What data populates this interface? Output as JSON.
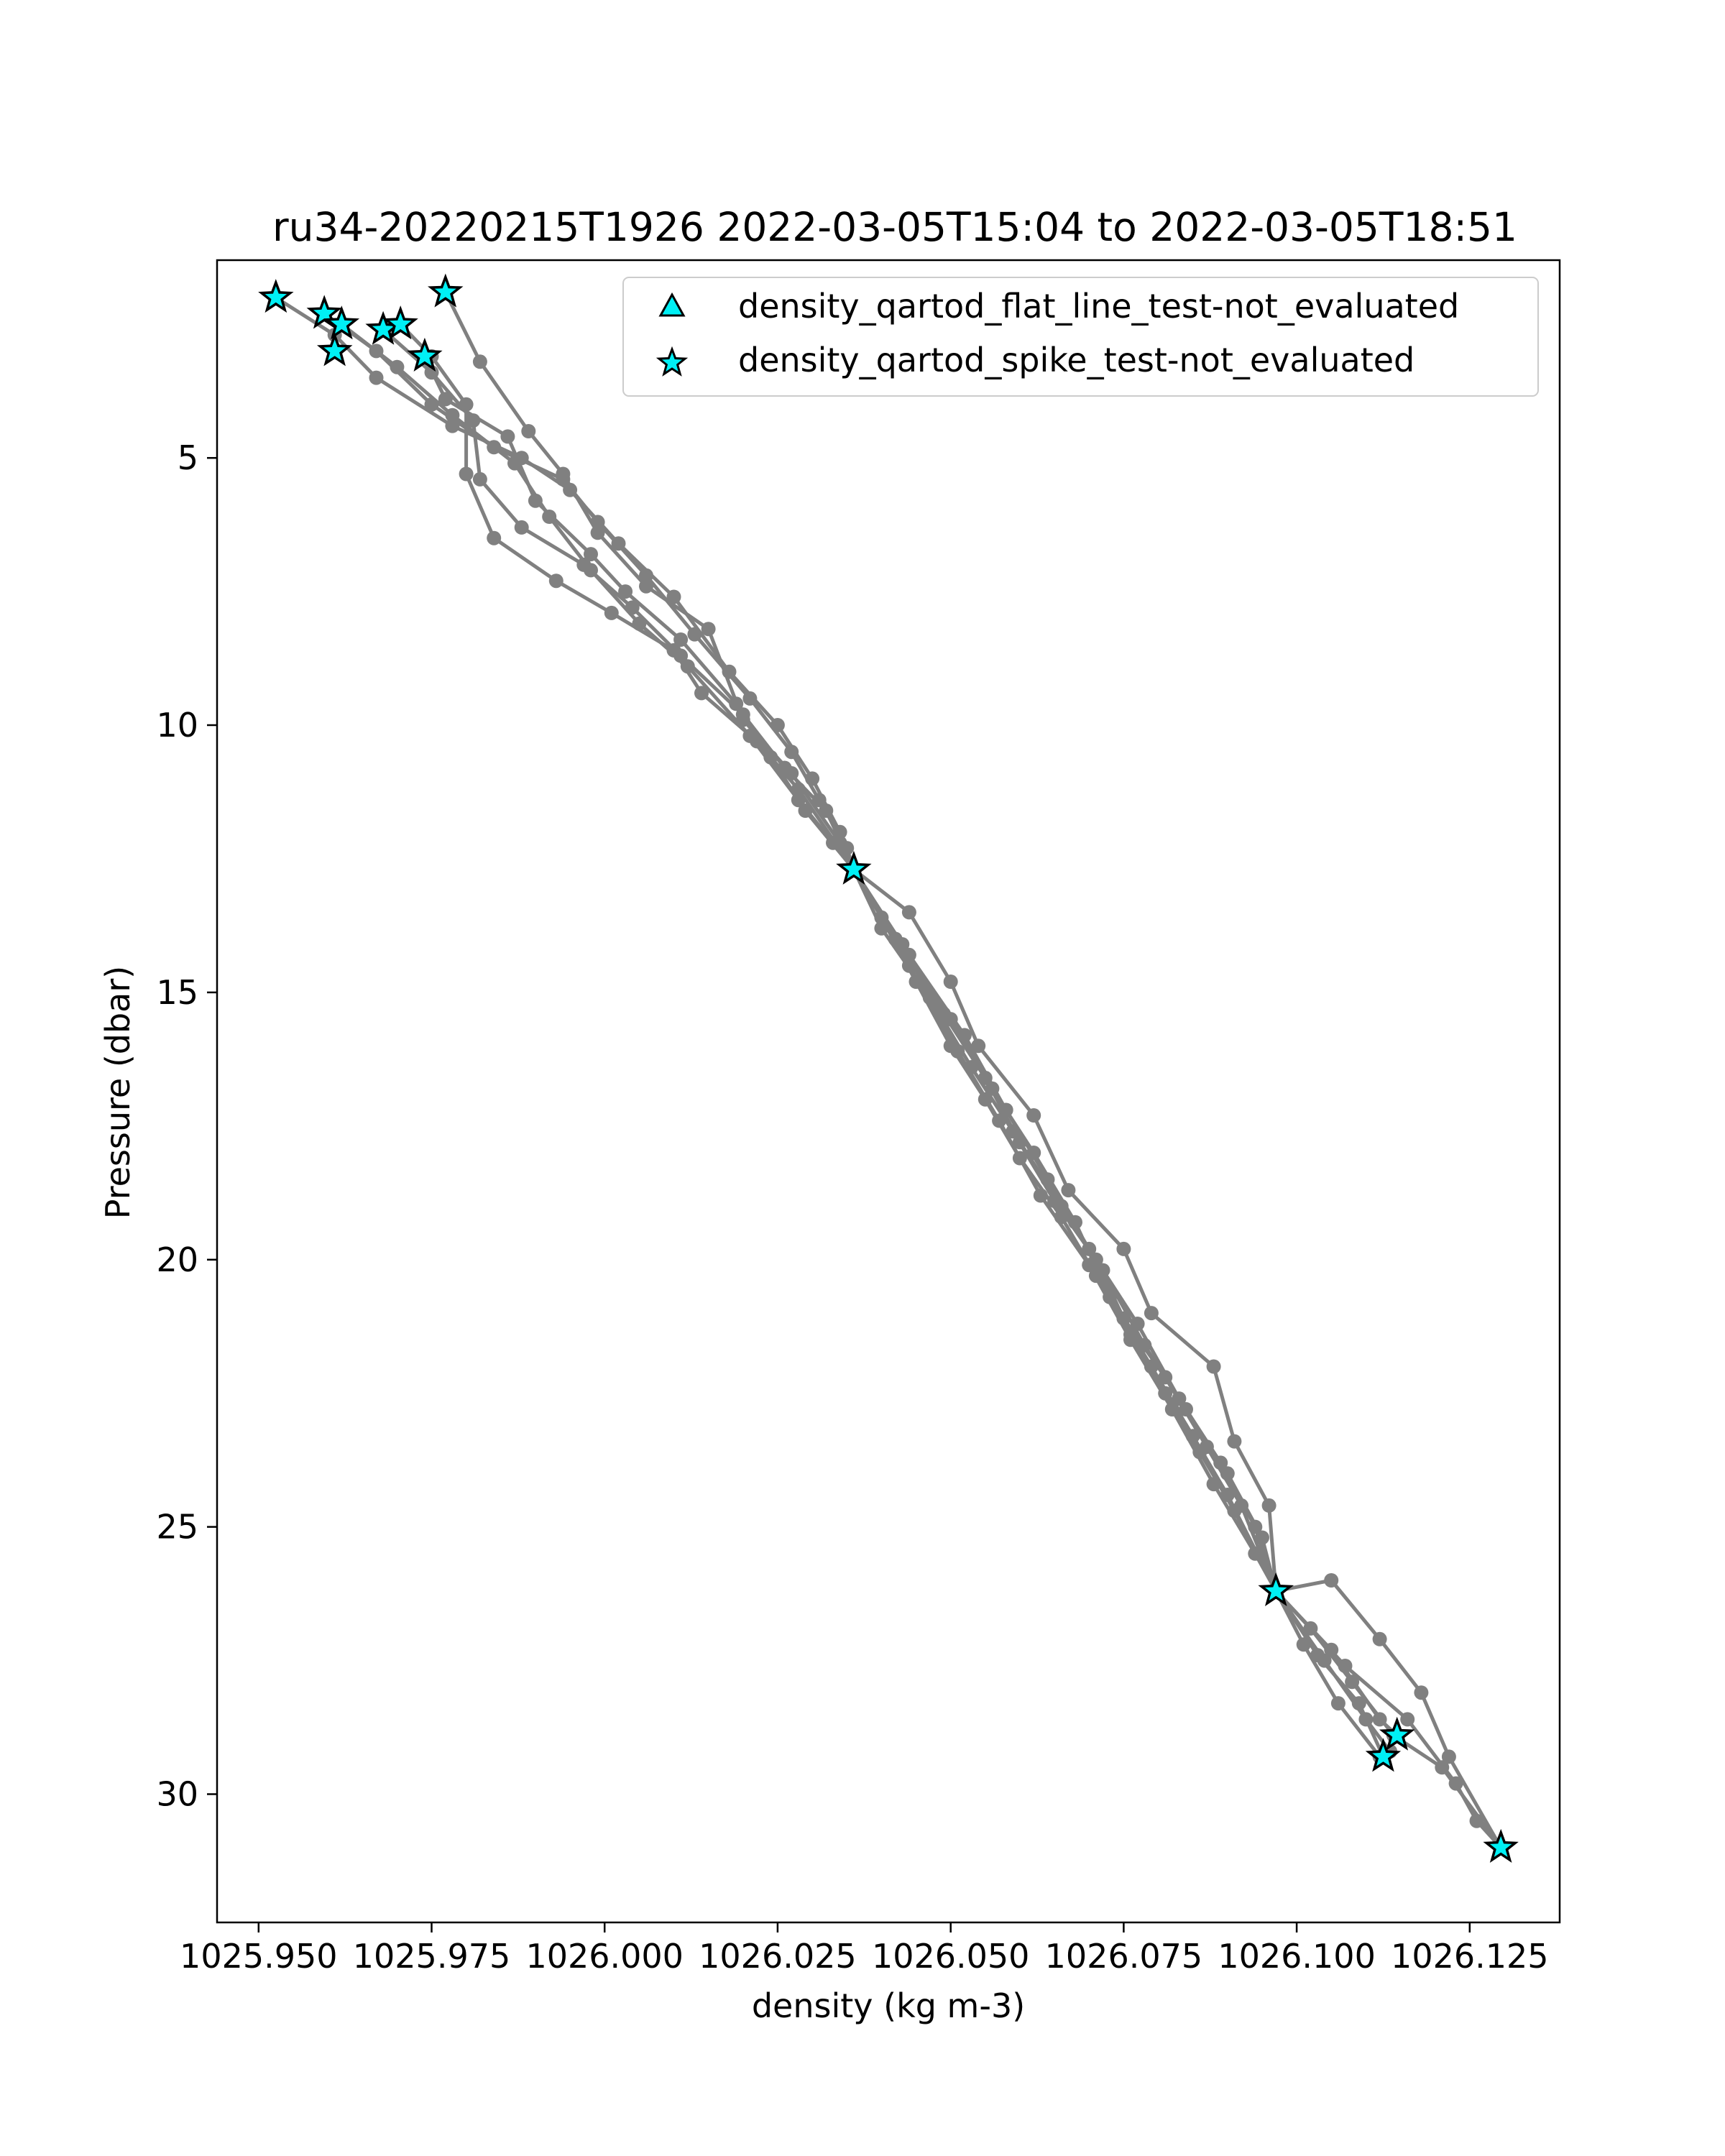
{
  "chart_data": {
    "type": "scatter",
    "title": "ru34-20220215T1926 2022-03-05T15:04 to 2022-03-05T18:51",
    "xlabel": "density (kg m-3)",
    "ylabel": "Pressure (dbar)",
    "xlim": [
      1025.944,
      1026.138
    ],
    "ylim": [
      32.4,
      1.3
    ],
    "y_inverted": true,
    "xticks": [
      1025.95,
      1025.975,
      1026.0,
      1026.025,
      1026.05,
      1026.075,
      1026.1,
      1026.125
    ],
    "xtick_labels": [
      "1025.950",
      "1025.975",
      "1026.000",
      "1026.025",
      "1026.050",
      "1026.075",
      "1026.100",
      "1026.125"
    ],
    "yticks": [
      5,
      10,
      15,
      20,
      25,
      30
    ],
    "ytick_labels": [
      "5",
      "10",
      "15",
      "20",
      "25",
      "30"
    ],
    "grid": false,
    "legend_position": "top-right",
    "colors": {
      "profile_line": "#808080",
      "marker_fill": "#00f0f5",
      "marker_edge": "#000000"
    },
    "legend": [
      {
        "label": "density_qartod_flat_line_test-not_evaluated",
        "marker": "triangle"
      },
      {
        "label": "density_qartod_spike_test-not_evaluated",
        "marker": "star"
      }
    ],
    "profiles": [
      {
        "points": [
          [
            1025.9525,
            2.0
          ],
          [
            1025.961,
            2.7
          ],
          [
            1025.967,
            3.5
          ],
          [
            1025.978,
            4.4
          ],
          [
            1025.988,
            5.0
          ],
          [
            1025.995,
            5.6
          ],
          [
            1026.002,
            6.6
          ],
          [
            1026.01,
            7.6
          ],
          [
            1026.018,
            9.0
          ],
          [
            1026.025,
            10.0
          ],
          [
            1026.03,
            11.0
          ],
          [
            1026.034,
            12.0
          ],
          [
            1026.036,
            12.7
          ],
          [
            1026.04,
            13.6
          ],
          [
            1026.045,
            14.8
          ],
          [
            1026.05,
            16.0
          ],
          [
            1026.055,
            17.0
          ],
          [
            1026.06,
            18.1
          ],
          [
            1026.066,
            19.2
          ],
          [
            1026.071,
            20.3
          ],
          [
            1026.076,
            21.4
          ],
          [
            1026.081,
            22.5
          ],
          [
            1026.086,
            23.6
          ],
          [
            1026.091,
            24.7
          ],
          [
            1026.097,
            26.2
          ],
          [
            1026.101,
            27.2
          ],
          [
            1026.106,
            28.3
          ],
          [
            1026.112,
            29.3
          ]
        ]
      },
      {
        "points": [
          [
            1025.9595,
            2.3
          ],
          [
            1025.967,
            3.0
          ],
          [
            1025.975,
            4.0
          ],
          [
            1025.984,
            4.8
          ],
          [
            1025.994,
            5.4
          ],
          [
            1025.999,
            6.2
          ],
          [
            1026.006,
            7.2
          ],
          [
            1026.013,
            8.3
          ],
          [
            1026.021,
            9.5
          ],
          [
            1026.027,
            10.5
          ],
          [
            1026.031,
            11.4
          ],
          [
            1026.035,
            12.3
          ],
          [
            1026.036,
            12.7
          ],
          [
            1026.042,
            14.0
          ],
          [
            1026.049,
            15.4
          ],
          [
            1026.055,
            16.6
          ],
          [
            1026.06,
            17.8
          ],
          [
            1026.066,
            19.0
          ],
          [
            1026.072,
            20.2
          ],
          [
            1026.078,
            21.6
          ],
          [
            1026.084,
            22.8
          ],
          [
            1026.09,
            24.0
          ],
          [
            1026.095,
            25.2
          ],
          [
            1026.097,
            26.2
          ],
          [
            1026.104,
            27.5
          ],
          [
            1026.11,
            28.6
          ],
          [
            1026.1135,
            29.2
          ]
        ]
      },
      {
        "points": [
          [
            1025.962,
            2.5
          ],
          [
            1025.97,
            3.3
          ],
          [
            1025.978,
            4.2
          ],
          [
            1025.987,
            5.1
          ],
          [
            1025.992,
            6.1
          ],
          [
            1025.998,
            7.1
          ],
          [
            1026.005,
            8.1
          ],
          [
            1026.012,
            8.9
          ],
          [
            1026.021,
            10.2
          ],
          [
            1026.028,
            11.4
          ],
          [
            1026.033,
            12.2
          ],
          [
            1026.036,
            12.7
          ],
          [
            1026.044,
            14.3
          ],
          [
            1026.052,
            15.8
          ],
          [
            1026.058,
            17.2
          ],
          [
            1026.064,
            18.5
          ],
          [
            1026.07,
            19.8
          ],
          [
            1026.077,
            21.2
          ],
          [
            1026.083,
            22.6
          ],
          [
            1026.089,
            23.8
          ],
          [
            1026.094,
            25.0
          ],
          [
            1026.097,
            26.2
          ],
          [
            1026.105,
            27.3
          ],
          [
            1026.112,
            28.6
          ],
          [
            1026.1145,
            28.9
          ]
        ]
      },
      {
        "points": [
          [
            1025.968,
            2.6
          ],
          [
            1025.975,
            3.4
          ],
          [
            1025.981,
            4.3
          ],
          [
            1025.982,
            5.4
          ],
          [
            1025.988,
            6.3
          ],
          [
            1025.997,
            7.0
          ],
          [
            1026.004,
            7.8
          ],
          [
            1026.011,
            8.7
          ],
          [
            1026.02,
            9.8
          ],
          [
            1026.026,
            10.8
          ],
          [
            1026.032,
            11.6
          ],
          [
            1026.036,
            12.7
          ],
          [
            1026.043,
            14.1
          ],
          [
            1026.05,
            15.5
          ],
          [
            1026.056,
            16.8
          ],
          [
            1026.062,
            18.0
          ],
          [
            1026.068,
            19.3
          ],
          [
            1026.073,
            20.7
          ],
          [
            1026.079,
            22.0
          ],
          [
            1026.085,
            23.3
          ],
          [
            1026.09,
            24.4
          ],
          [
            1026.097,
            26.2
          ],
          [
            1026.102,
            26.9
          ],
          [
            1026.108,
            27.9
          ],
          [
            1026.114,
            28.9
          ],
          [
            1026.121,
            29.5
          ],
          [
            1026.1295,
            31.0
          ]
        ]
      },
      {
        "points": [
          [
            1025.9705,
            2.5
          ],
          [
            1025.975,
            3.1
          ],
          [
            1025.98,
            4.0
          ],
          [
            1025.98,
            5.3
          ],
          [
            1025.984,
            6.5
          ],
          [
            1025.993,
            7.3
          ],
          [
            1026.001,
            7.9
          ],
          [
            1026.01,
            8.6
          ],
          [
            1026.014,
            9.4
          ],
          [
            1026.022,
            10.3
          ],
          [
            1026.028,
            11.2
          ],
          [
            1026.036,
            12.7
          ],
          [
            1026.044,
            14.5
          ],
          [
            1026.051,
            16.1
          ],
          [
            1026.057,
            17.4
          ],
          [
            1026.063,
            18.8
          ],
          [
            1026.07,
            20.1
          ],
          [
            1026.076,
            21.5
          ],
          [
            1026.082,
            22.8
          ],
          [
            1026.088,
            24.2
          ],
          [
            1026.094,
            25.5
          ],
          [
            1026.097,
            26.2
          ],
          [
            1026.103,
            27.4
          ],
          [
            1026.109,
            28.3
          ],
          [
            1026.1125,
            29.3
          ]
        ]
      },
      {
        "points": [
          [
            1025.974,
            3.1
          ],
          [
            1025.977,
            3.9
          ],
          [
            1025.986,
            4.6
          ],
          [
            1025.99,
            5.8
          ],
          [
            1025.998,
            6.8
          ],
          [
            1026.003,
            7.5
          ],
          [
            1026.011,
            8.4
          ],
          [
            1026.019,
            9.6
          ],
          [
            1026.024,
            10.6
          ],
          [
            1026.029,
            11.6
          ],
          [
            1026.036,
            12.7
          ],
          [
            1026.04,
            13.8
          ],
          [
            1026.047,
            15.1
          ],
          [
            1026.053,
            16.4
          ],
          [
            1026.059,
            17.6
          ],
          [
            1026.065,
            18.9
          ],
          [
            1026.071,
            20.0
          ],
          [
            1026.075,
            21.1
          ],
          [
            1026.081,
            22.2
          ],
          [
            1026.087,
            23.5
          ],
          [
            1026.092,
            24.6
          ],
          [
            1026.097,
            26.2
          ],
          [
            1026.107,
            27.6
          ],
          [
            1026.116,
            28.6
          ],
          [
            1026.123,
            29.8
          ],
          [
            1026.126,
            30.5
          ],
          [
            1026.1295,
            31.0
          ]
        ]
      },
      {
        "points": [
          [
            1025.977,
            1.9
          ],
          [
            1025.982,
            3.2
          ],
          [
            1025.989,
            4.5
          ],
          [
            1025.994,
            5.3
          ],
          [
            1025.999,
            6.4
          ],
          [
            1026.006,
            7.4
          ],
          [
            1026.015,
            8.2
          ],
          [
            1026.02,
            9.9
          ],
          [
            1026.027,
            10.9
          ],
          [
            1026.034,
            12.2
          ],
          [
            1026.036,
            12.7
          ],
          [
            1026.044,
            13.5
          ],
          [
            1026.05,
            14.8
          ],
          [
            1026.054,
            16.0
          ],
          [
            1026.062,
            17.3
          ],
          [
            1026.067,
            18.7
          ],
          [
            1026.075,
            19.8
          ],
          [
            1026.079,
            21.0
          ],
          [
            1026.088,
            22.0
          ],
          [
            1026.091,
            23.4
          ],
          [
            1026.096,
            24.6
          ],
          [
            1026.097,
            26.2
          ],
          [
            1026.105,
            26.0
          ],
          [
            1026.112,
            27.1
          ],
          [
            1026.118,
            28.1
          ],
          [
            1026.122,
            29.3
          ],
          [
            1026.1295,
            31.0
          ]
        ]
      }
    ],
    "spike_test_not_evaluated_points": [
      [
        1025.9525,
        2.0
      ],
      [
        1025.9595,
        2.3
      ],
      [
        1025.962,
        2.5
      ],
      [
        1025.968,
        2.6
      ],
      [
        1025.9705,
        2.5
      ],
      [
        1025.974,
        3.1
      ],
      [
        1025.977,
        1.9
      ],
      [
        1025.961,
        3.0
      ],
      [
        1026.036,
        12.7
      ],
      [
        1026.097,
        26.2
      ],
      [
        1026.1145,
        28.9
      ],
      [
        1026.1125,
        29.3
      ],
      [
        1026.1295,
        31.0
      ]
    ],
    "flat_line_test_not_evaluated_points": []
  }
}
